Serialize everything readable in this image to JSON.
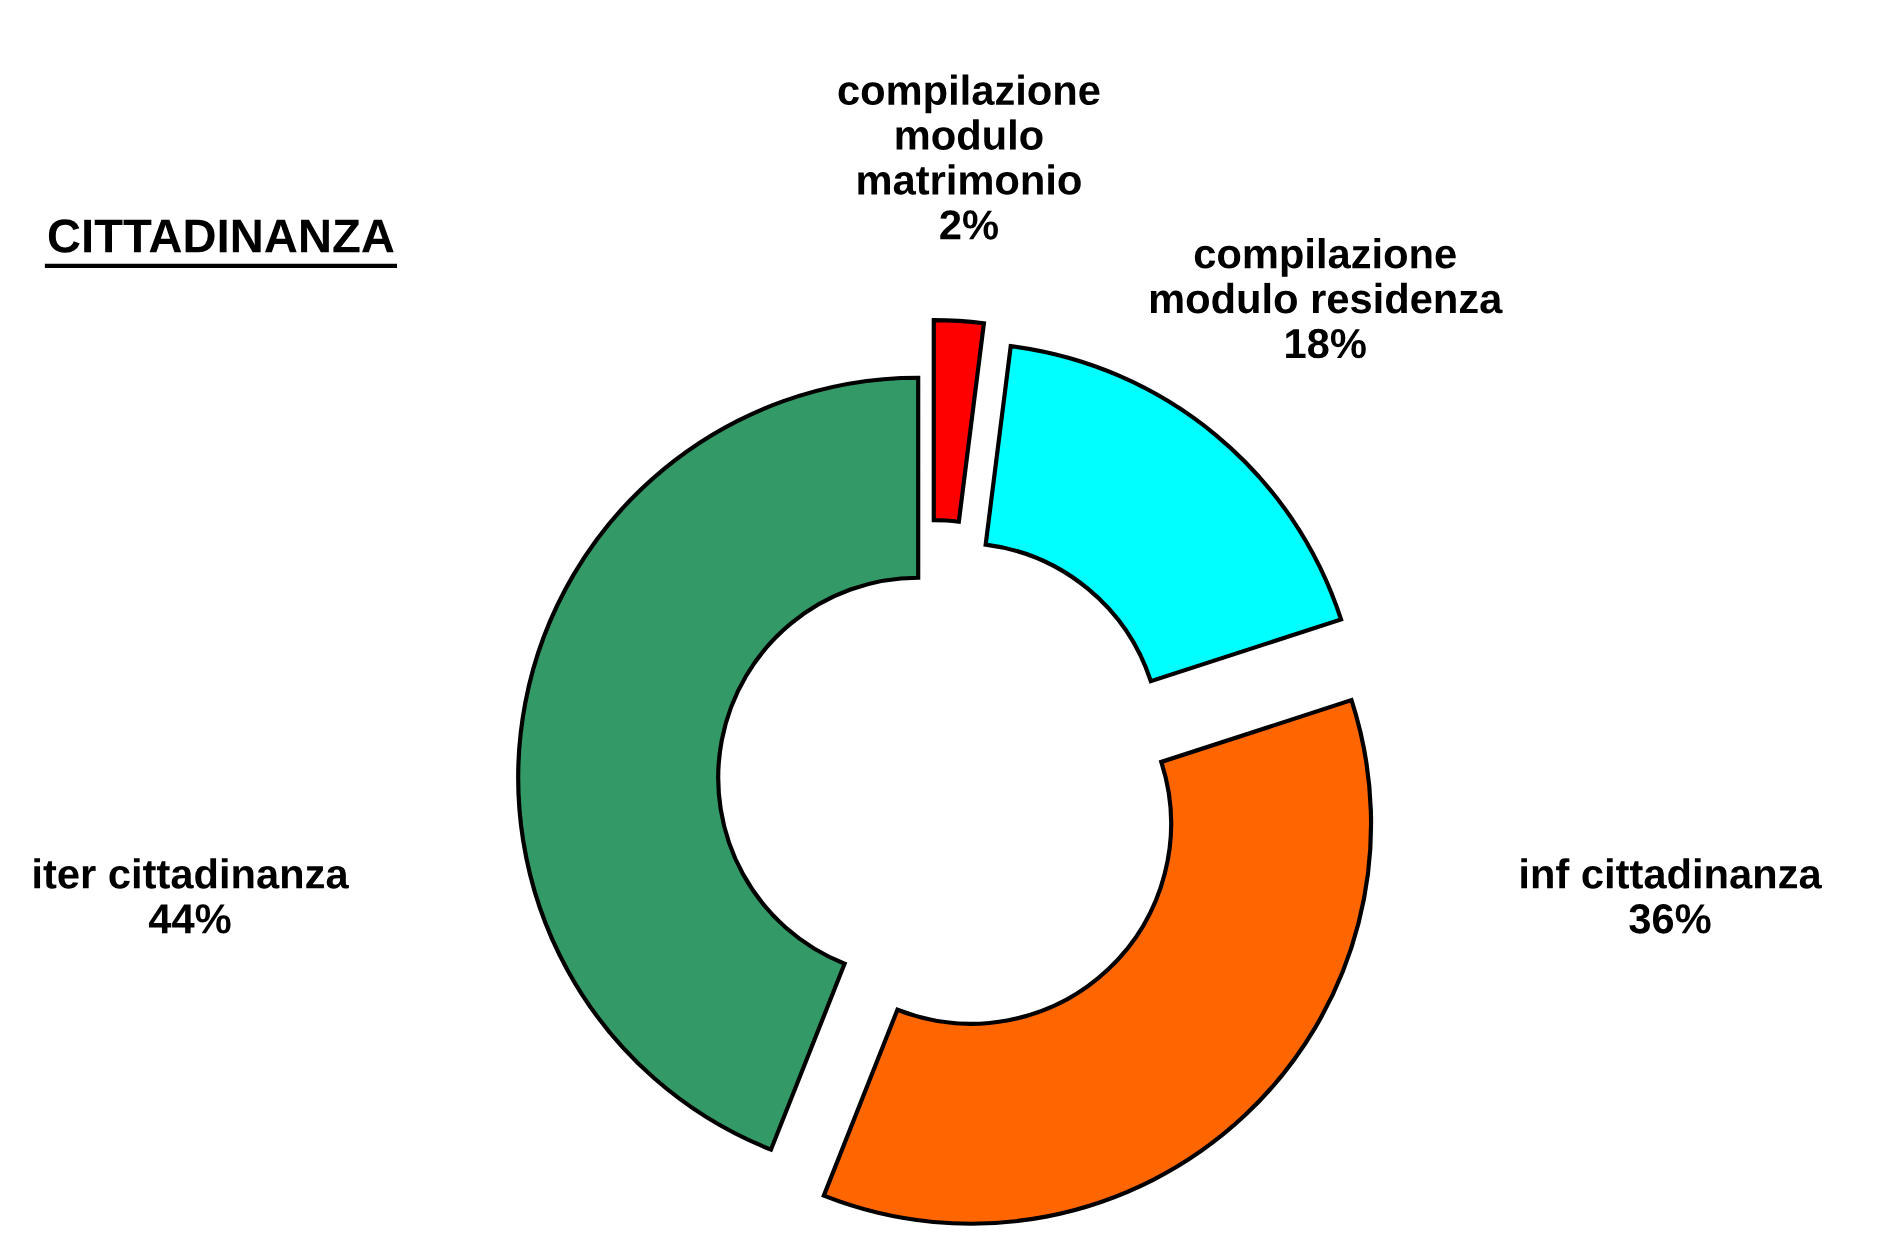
{
  "chart_data": {
    "type": "donut",
    "title": "CITTADINANZA",
    "categories": [
      "compilazione\nmodulo\nmatrimonio",
      "compilazione\nmodulo residenza",
      "inf cittadinanza",
      "iter cittadinanza"
    ],
    "values": [
      2,
      18,
      36,
      44
    ],
    "value_labels": [
      "2%",
      "18%",
      "36%",
      "44%"
    ],
    "colors": [
      "#ff0000",
      "#00ffff",
      "#ff6600",
      "#339966"
    ],
    "legend": false
  }
}
